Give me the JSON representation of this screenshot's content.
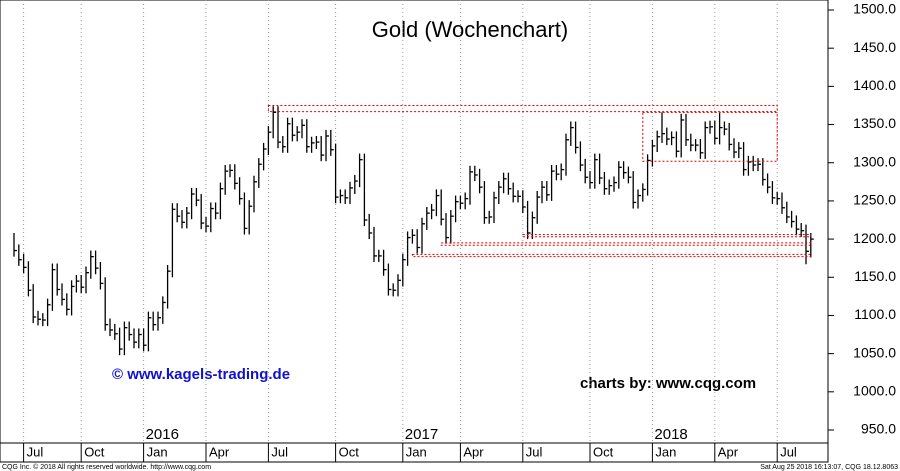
{
  "chart_data": {
    "type": "ohlc",
    "title": "Gold (Wochenchart)",
    "annotations": [
      "© www.kagels-trading.de",
      "charts by: www.cqg.com"
    ],
    "footer_left": "CQG Inc. © 2018 All rights reserved worldwide. http://www.cqg.com",
    "footer_right": "Sat Aug 25 2018 16:13:07, CQG 18.12.8063",
    "color": "#000000",
    "level_color": "#e00000",
    "categories": [
      null,
      null,
      "Jul",
      null,
      null,
      null,
      null,
      null,
      null,
      null,
      null,
      null,
      null,
      null,
      "Oct",
      null,
      null,
      null,
      null,
      null,
      null,
      null,
      null,
      null,
      null,
      null,
      null,
      "Jan",
      null,
      null,
      null,
      null,
      null,
      null,
      null,
      null,
      null,
      null,
      null,
      null,
      "Apr",
      null,
      null,
      null,
      null,
      null,
      null,
      null,
      null,
      null,
      null,
      null,
      null,
      "Jul",
      null,
      null,
      null,
      null,
      null,
      null,
      null,
      null,
      null,
      null,
      null,
      null,
      null,
      "Oct",
      null,
      null,
      null,
      null,
      null,
      null,
      null,
      null,
      null,
      null,
      null,
      null,
      null,
      "Jan",
      null,
      null,
      null,
      null,
      null,
      null,
      null,
      null,
      null,
      null,
      null,
      "Apr",
      null,
      null,
      null,
      null,
      null,
      null,
      null,
      null,
      null,
      null,
      null,
      null,
      "Jul",
      null,
      null,
      null,
      null,
      null,
      null,
      null,
      null,
      null,
      null,
      null,
      null,
      null,
      "Oct",
      null,
      null,
      null,
      null,
      null,
      null,
      null,
      null,
      null,
      null,
      null,
      null,
      "Jan",
      null,
      null,
      null,
      null,
      null,
      null,
      null,
      null,
      null,
      null,
      null,
      null,
      "Apr",
      null,
      null,
      null,
      null,
      null,
      null,
      null,
      null,
      null,
      null,
      null,
      null,
      "Jul",
      null,
      null,
      null,
      null,
      null,
      null,
      null
    ],
    "years": [
      {
        "label": "2016",
        "at": 27
      },
      {
        "label": "2017",
        "at": 81
      },
      {
        "label": "2018",
        "at": 133
      }
    ],
    "high": [
      1208,
      1193,
      1181,
      1171,
      1141,
      1106,
      1103,
      1122,
      1168,
      1168,
      1142,
      1129,
      1146,
      1153,
      1153,
      1164,
      1185,
      1185,
      1170,
      1150,
      1096,
      1089,
      1084,
      1092,
      1092,
      1083,
      1083,
      1083,
      1105,
      1105,
      1105,
      1125,
      1166,
      1247,
      1247,
      1238,
      1242,
      1267,
      1267,
      1259,
      1229,
      1248,
      1248,
      1274,
      1297,
      1298,
      1298,
      1281,
      1261,
      1251,
      1283,
      1306,
      1326,
      1348,
      1374,
      1374,
      1335,
      1359,
      1359,
      1348,
      1357,
      1357,
      1334,
      1335,
      1335,
      1343,
      1343,
      1325,
      1265,
      1265,
      1275,
      1284,
      1312,
      1312,
      1233,
      1216,
      1186,
      1186,
      1168,
      1142,
      1154,
      1181,
      1210,
      1213,
      1213,
      1228,
      1242,
      1246,
      1265,
      1265,
      1234,
      1238,
      1257,
      1257,
      1261,
      1296,
      1296,
      1292,
      1276,
      1237,
      1262,
      1276,
      1287,
      1287,
      1274,
      1264,
      1264,
      1250,
      1236,
      1263,
      1276,
      1276,
      1297,
      1297,
      1299,
      1338,
      1354,
      1354,
      1328,
      1305,
      1289,
      1312,
      1312,
      1288,
      1278,
      1282,
      1302,
      1302,
      1295,
      1289,
      1265,
      1273,
      1311,
      1330,
      1342,
      1366,
      1346,
      1341,
      1341,
      1364,
      1364,
      1338,
      1331,
      1331,
      1354,
      1355,
      1355,
      1365,
      1354,
      1352,
      1332,
      1327,
      1327,
      1309,
      1309,
      1306,
      1306,
      1286,
      1276,
      1262,
      1261,
      1249,
      1237,
      1231,
      1221,
      1219,
      1208
    ],
    "low": [
      1177,
      1165,
      1155,
      1125,
      1090,
      1087,
      1086,
      1086,
      1106,
      1126,
      1113,
      1100,
      1100,
      1130,
      1129,
      1129,
      1148,
      1154,
      1134,
      1080,
      1073,
      1068,
      1048,
      1048,
      1067,
      1057,
      1057,
      1053,
      1053,
      1080,
      1080,
      1089,
      1109,
      1150,
      1222,
      1214,
      1214,
      1226,
      1243,
      1213,
      1209,
      1209,
      1226,
      1226,
      1258,
      1281,
      1265,
      1245,
      1206,
      1206,
      1235,
      1267,
      1290,
      1310,
      1332,
      1319,
      1313,
      1313,
      1328,
      1328,
      1332,
      1313,
      1313,
      1318,
      1302,
      1302,
      1309,
      1247,
      1247,
      1246,
      1246,
      1259,
      1268,
      1217,
      1200,
      1170,
      1170,
      1152,
      1126,
      1125,
      1125,
      1138,
      1165,
      1194,
      1181,
      1181,
      1212,
      1226,
      1230,
      1218,
      1194,
      1194,
      1222,
      1239,
      1239,
      1245,
      1276,
      1260,
      1220,
      1220,
      1221,
      1246,
      1260,
      1258,
      1248,
      1248,
      1234,
      1200,
      1200,
      1220,
      1247,
      1250,
      1250,
      1277,
      1277,
      1283,
      1322,
      1312,
      1289,
      1273,
      1266,
      1266,
      1272,
      1258,
      1258,
      1262,
      1266,
      1279,
      1273,
      1240,
      1240,
      1249,
      1257,
      1295,
      1314,
      1326,
      1323,
      1323,
      1307,
      1307,
      1322,
      1315,
      1315,
      1305,
      1305,
      1338,
      1324,
      1324,
      1336,
      1316,
      1306,
      1306,
      1283,
      1283,
      1289,
      1289,
      1270,
      1260,
      1246,
      1245,
      1233,
      1221,
      1215,
      1205,
      1203,
      1167,
      1176
    ],
    "close": [
      1185,
      1173,
      1163,
      1133,
      1098,
      1095,
      1094,
      1114,
      1160,
      1134,
      1121,
      1108,
      1138,
      1145,
      1137,
      1156,
      1177,
      1162,
      1142,
      1088,
      1081,
      1076,
      1056,
      1084,
      1075,
      1065,
      1075,
      1061,
      1097,
      1088,
      1097,
      1117,
      1158,
      1239,
      1230,
      1222,
      1234,
      1259,
      1251,
      1221,
      1217,
      1240,
      1234,
      1266,
      1289,
      1290,
      1273,
      1253,
      1214,
      1243,
      1275,
      1298,
      1318,
      1340,
      1366,
      1327,
      1321,
      1351,
      1336,
      1340,
      1349,
      1321,
      1326,
      1327,
      1310,
      1335,
      1317,
      1255,
      1257,
      1254,
      1267,
      1276,
      1304,
      1225,
      1208,
      1178,
      1178,
      1160,
      1134,
      1133,
      1146,
      1173,
      1202,
      1205,
      1189,
      1220,
      1234,
      1238,
      1257,
      1226,
      1202,
      1230,
      1249,
      1247,
      1253,
      1288,
      1284,
      1268,
      1228,
      1229,
      1254,
      1268,
      1279,
      1266,
      1256,
      1256,
      1242,
      1208,
      1228,
      1255,
      1268,
      1258,
      1289,
      1285,
      1291,
      1330,
      1346,
      1320,
      1297,
      1281,
      1274,
      1304,
      1280,
      1266,
      1270,
      1274,
      1294,
      1287,
      1281,
      1248,
      1257,
      1265,
      1303,
      1322,
      1334,
      1338,
      1331,
      1333,
      1315,
      1356,
      1330,
      1323,
      1323,
      1313,
      1346,
      1347,
      1332,
      1346,
      1344,
      1324,
      1314,
      1319,
      1291,
      1301,
      1297,
      1298,
      1278,
      1268,
      1254,
      1253,
      1241,
      1229,
      1223,
      1213,
      1211,
      1184,
      1200
    ],
    "levels": [
      {
        "from": 53,
        "to": 159,
        "range": [
          1367,
          1375
        ]
      },
      {
        "from": 131,
        "to": 159,
        "range": [
          1302,
          1366
        ]
      },
      {
        "from": 106,
        "to": 166,
        "range": [
          1203,
          1206
        ]
      },
      {
        "from": 89,
        "to": 166,
        "range": [
          1192,
          1195
        ]
      },
      {
        "from": 83,
        "to": 166,
        "range": [
          1177,
          1180
        ]
      }
    ],
    "ylim": [
      930,
      1510
    ],
    "yticks": [
      {
        "value": 950,
        "label": "950.0"
      },
      {
        "value": 1000,
        "label": "1000.0"
      },
      {
        "value": 1050,
        "label": "1050.0"
      },
      {
        "value": 1100,
        "label": "1100.0"
      },
      {
        "value": 1150,
        "label": "1150.0"
      },
      {
        "value": 1200,
        "label": "1200.0"
      },
      {
        "value": 1250,
        "label": "1250.0"
      },
      {
        "value": 1300,
        "label": "1300.0"
      },
      {
        "value": 1350,
        "label": "1350.0"
      },
      {
        "value": 1400,
        "label": "1400.0"
      },
      {
        "value": 1450,
        "label": "1450.0"
      },
      {
        "value": 1500,
        "label": "1500.0"
      }
    ],
    "grid": true
  }
}
